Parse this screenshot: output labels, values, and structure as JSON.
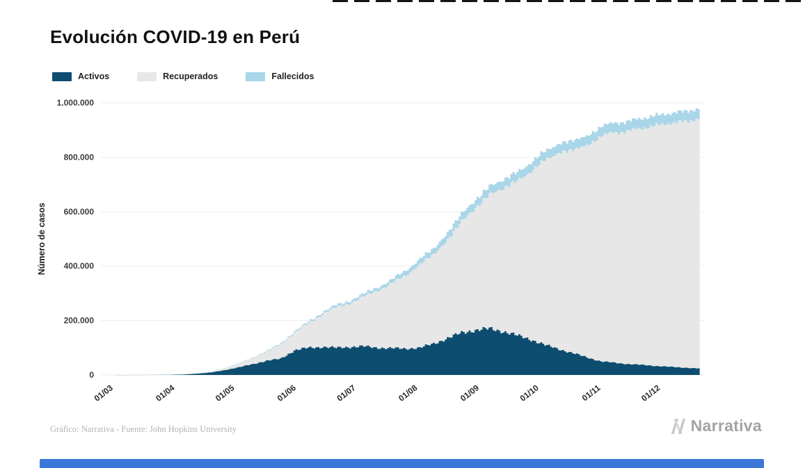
{
  "title": "Evolución COVID-19 en Perú",
  "footer": {
    "credit": "Gráfico: Narrativa - Fuente: John Hopkins University",
    "logo_text": "Narrativa"
  },
  "colors": {
    "gridline": "#ededed",
    "artifact_bar": "#3c78d8",
    "logo_gray": "#c8c8c8"
  },
  "chart_data": {
    "type": "area",
    "stacked": true,
    "title": "Evolución COVID-19 en Perú",
    "xlabel": "",
    "ylabel": "Número de casos",
    "ylim": [
      0,
      1000000
    ],
    "grid": "horizontal",
    "legend_position": "top-left",
    "yticks": [
      0,
      200000,
      400000,
      600000,
      800000,
      1000000
    ],
    "ytick_labels": [
      "0",
      "200.000",
      "400.000",
      "600.000",
      "800.000",
      "1.000.000"
    ],
    "xtick_labels": [
      "01/03",
      "01/04",
      "01/05",
      "01/06",
      "01/07",
      "01/08",
      "01/09",
      "01/10",
      "01/11",
      "01/12"
    ],
    "xtick_days": [
      0,
      31,
      61,
      92,
      122,
      153,
      184,
      214,
      245,
      275
    ],
    "x_days": [
      0,
      7,
      14,
      21,
      28,
      35,
      42,
      49,
      56,
      63,
      70,
      77,
      84,
      91,
      98,
      105,
      112,
      119,
      126,
      133,
      140,
      147,
      154,
      161,
      168,
      175,
      182,
      189,
      196,
      203,
      210,
      217,
      224,
      231,
      238,
      245,
      252,
      259,
      266,
      273,
      280,
      287,
      294
    ],
    "series": [
      {
        "name": "Activos",
        "color": "#0d4d70",
        "values": [
          0,
          20,
          80,
          350,
          900,
          1800,
          5000,
          9000,
          18000,
          28000,
          40000,
          52000,
          60000,
          90000,
          100000,
          103000,
          100000,
          103000,
          105000,
          100000,
          98000,
          97000,
          100000,
          115000,
          135000,
          155000,
          165000,
          170000,
          160000,
          145000,
          130000,
          110000,
          95000,
          80000,
          65000,
          50000,
          45000,
          40000,
          37000,
          33000,
          30000,
          27000,
          24000
        ]
      },
      {
        "name": "Recuperados",
        "color": "#e7e7e7",
        "values": [
          0,
          0,
          0,
          10,
          70,
          400,
          1500,
          3000,
          7000,
          14000,
          21000,
          34000,
          52000,
          65000,
          90000,
          120000,
          150000,
          160000,
          185000,
          210000,
          240000,
          270000,
          305000,
          330000,
          360000,
          410000,
          450000,
          490000,
          530000,
          565000,
          620000,
          680000,
          720000,
          750000,
          775000,
          830000,
          845000,
          858000,
          870000,
          885000,
          895000,
          905000,
          917000
        ]
      },
      {
        "name": "Fallecidos",
        "color": "#a9d6e8",
        "values": [
          0,
          0,
          0,
          5,
          30,
          80,
          190,
          400,
          700,
          1200,
          1800,
          2500,
          3300,
          4500,
          5500,
          6500,
          7400,
          8600,
          10000,
          11500,
          13000,
          17000,
          19500,
          20800,
          26000,
          27700,
          28800,
          29900,
          30800,
          31600,
          32200,
          32700,
          33200,
          33700,
          34100,
          34500,
          34800,
          35100,
          35400,
          35800,
          36200,
          36600,
          37000
        ]
      }
    ]
  }
}
